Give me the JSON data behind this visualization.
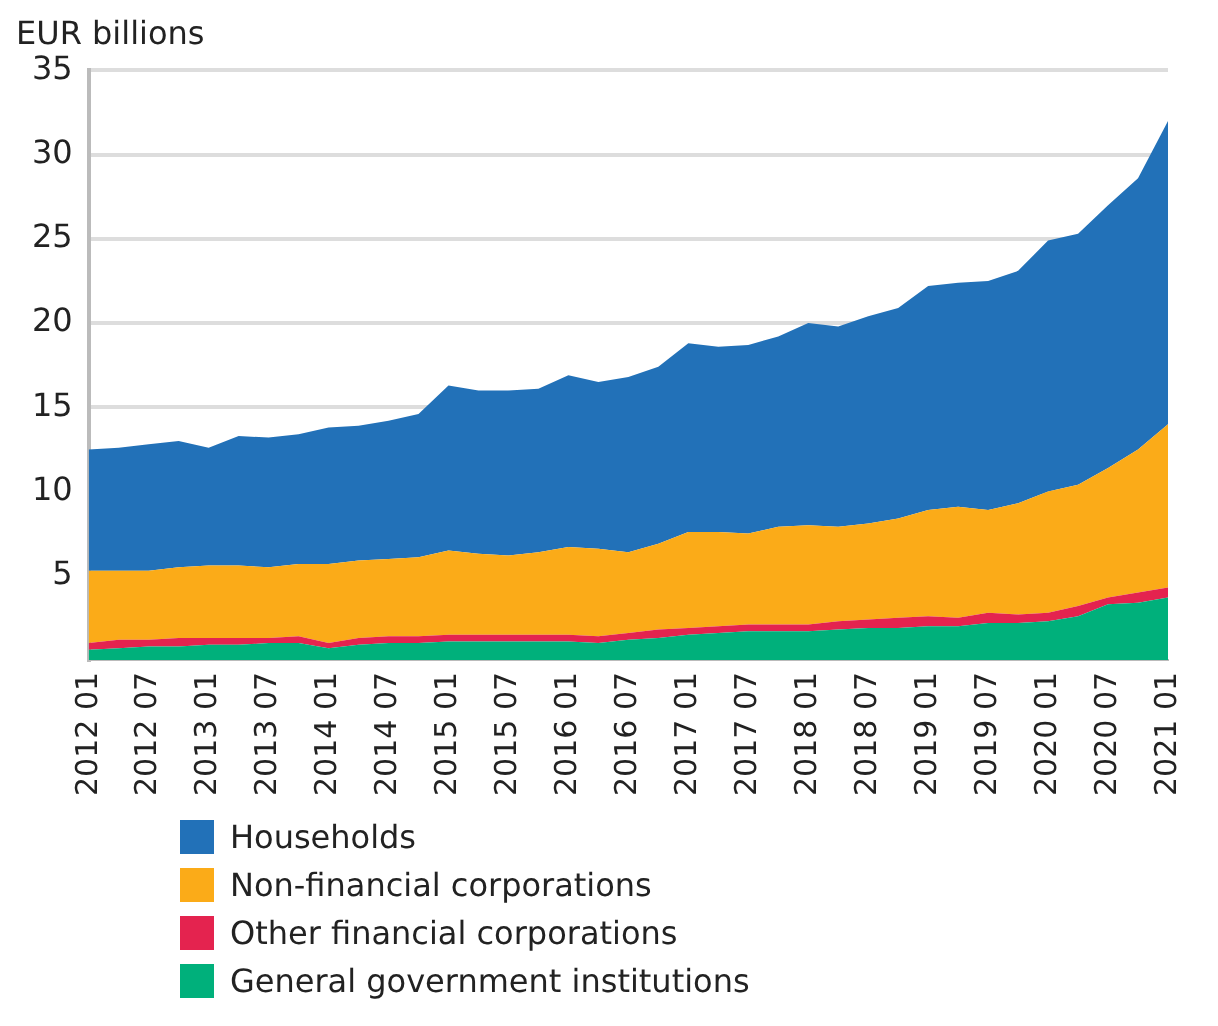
{
  "chart_data": {
    "type": "area",
    "ylabel": "EUR billions",
    "stacked": true,
    "grid": "y",
    "legend": "bottom",
    "categories": [
      "2012 01",
      null,
      "2012 07",
      null,
      "2013 01",
      null,
      "2013 07",
      null,
      "2014 01",
      null,
      "2014 07",
      null,
      "2015 01",
      null,
      "2015 07",
      null,
      "2016 01",
      null,
      "2016 07",
      null,
      "2017 01",
      null,
      "2017 07",
      null,
      "2018 01",
      null,
      "2018 07",
      null,
      "2019 01",
      null,
      "2019 07",
      null,
      "2020 01",
      null,
      "2020 07",
      null,
      "2021 01"
    ],
    "ylim": [
      0,
      35
    ],
    "yticks": [
      5,
      10,
      15,
      20,
      25,
      30,
      35
    ],
    "series": [
      {
        "name": "General government institutions",
        "color": "#00b07b",
        "values": [
          0.6,
          0.7,
          0.8,
          0.8,
          0.9,
          0.9,
          1.0,
          1.0,
          0.7,
          0.9,
          1.0,
          1.0,
          1.1,
          1.1,
          1.1,
          1.1,
          1.1,
          1.0,
          1.2,
          1.3,
          1.5,
          1.6,
          1.7,
          1.7,
          1.7,
          1.8,
          1.9,
          1.9,
          2.0,
          2.0,
          2.2,
          2.2,
          2.3,
          2.6,
          3.3,
          3.4,
          3.7
        ]
      },
      {
        "name": "Other financial corporations",
        "color": "#e4234f",
        "values": [
          0.4,
          0.5,
          0.4,
          0.5,
          0.4,
          0.4,
          0.3,
          0.4,
          0.3,
          0.4,
          0.4,
          0.4,
          0.4,
          0.4,
          0.4,
          0.4,
          0.4,
          0.4,
          0.4,
          0.5,
          0.4,
          0.4,
          0.4,
          0.4,
          0.4,
          0.5,
          0.5,
          0.6,
          0.6,
          0.5,
          0.6,
          0.5,
          0.5,
          0.6,
          0.4,
          0.6,
          0.6
        ]
      },
      {
        "name": "Non-financial corporations",
        "color": "#fbab18",
        "values": [
          4.3,
          4.1,
          4.1,
          4.2,
          4.3,
          4.3,
          4.2,
          4.3,
          4.7,
          4.6,
          4.6,
          4.7,
          5.0,
          4.8,
          4.7,
          4.9,
          5.2,
          5.2,
          4.8,
          5.1,
          5.7,
          5.6,
          5.4,
          5.8,
          5.9,
          5.6,
          5.7,
          5.9,
          6.3,
          6.6,
          6.1,
          6.6,
          7.2,
          7.2,
          7.7,
          8.5,
          9.7
        ]
      },
      {
        "name": "Households",
        "color": "#2271b8",
        "values": [
          7.2,
          7.3,
          7.5,
          7.5,
          7.0,
          7.7,
          7.7,
          7.7,
          8.1,
          8.0,
          8.2,
          8.5,
          9.8,
          9.7,
          9.8,
          9.7,
          10.2,
          9.9,
          10.4,
          10.5,
          11.2,
          11.0,
          11.2,
          11.3,
          12.0,
          11.9,
          12.3,
          12.5,
          13.3,
          13.3,
          13.6,
          13.8,
          14.9,
          14.9,
          15.6,
          16.1,
          18.0
        ]
      }
    ]
  }
}
